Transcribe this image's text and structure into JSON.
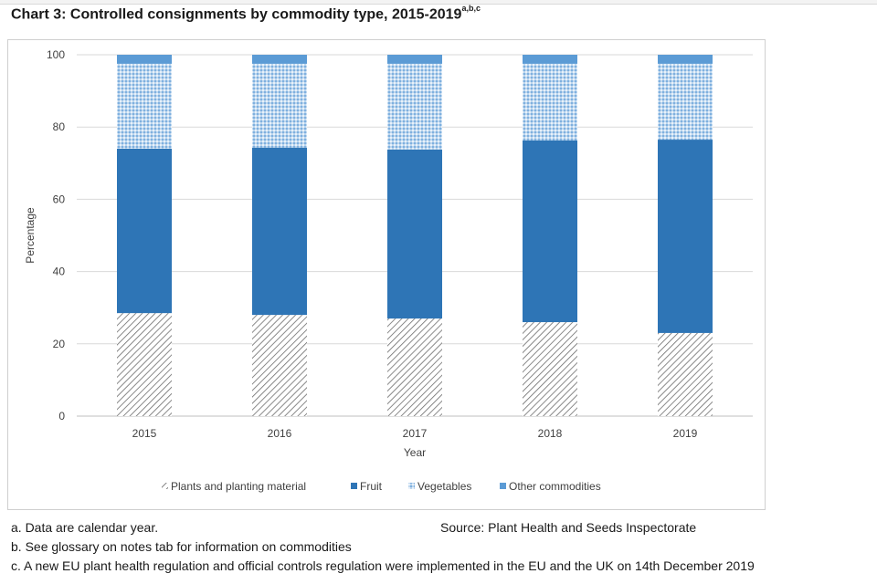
{
  "title": "Chart 3: Controlled consignments by commodity type, 2015-2019",
  "title_superscript": "a,b,c",
  "chart_data": {
    "type": "bar",
    "stacked": true,
    "categories": [
      "2015",
      "2016",
      "2017",
      "2018",
      "2019"
    ],
    "series": [
      {
        "name": "Plants and planting material",
        "values": [
          28.5,
          28,
          27,
          26,
          23
        ],
        "color": "#595959",
        "pattern": "diagonal-hatch"
      },
      {
        "name": "Fruit",
        "values": [
          45.5,
          46.3,
          46.8,
          50.3,
          53.5
        ],
        "color": "#2e75b6",
        "pattern": "solid"
      },
      {
        "name": "Vegetables",
        "values": [
          23.5,
          23.2,
          23.7,
          21.2,
          21.0
        ],
        "color": "#9dc3e6",
        "pattern": "dotted"
      },
      {
        "name": "Other commodities",
        "values": [
          2.5,
          2.5,
          2.5,
          2.5,
          2.5
        ],
        "color": "#5b9bd5",
        "pattern": "solid"
      }
    ],
    "xlabel": "Year",
    "ylabel": "Percentage",
    "ylim": [
      0,
      100
    ],
    "yticks": [
      "0",
      "20",
      "40",
      "60",
      "80",
      "100"
    ],
    "grid": true,
    "legend": "bottom"
  },
  "notes": {
    "a": "a. Data are calendar year.",
    "b": "b. See glossary on notes tab for information on commodities",
    "c": "c. A new EU plant health regulation and official controls regulation were implemented in the EU and the UK on 14th December 2019",
    "source": "Source: Plant Health and Seeds Inspectorate"
  }
}
